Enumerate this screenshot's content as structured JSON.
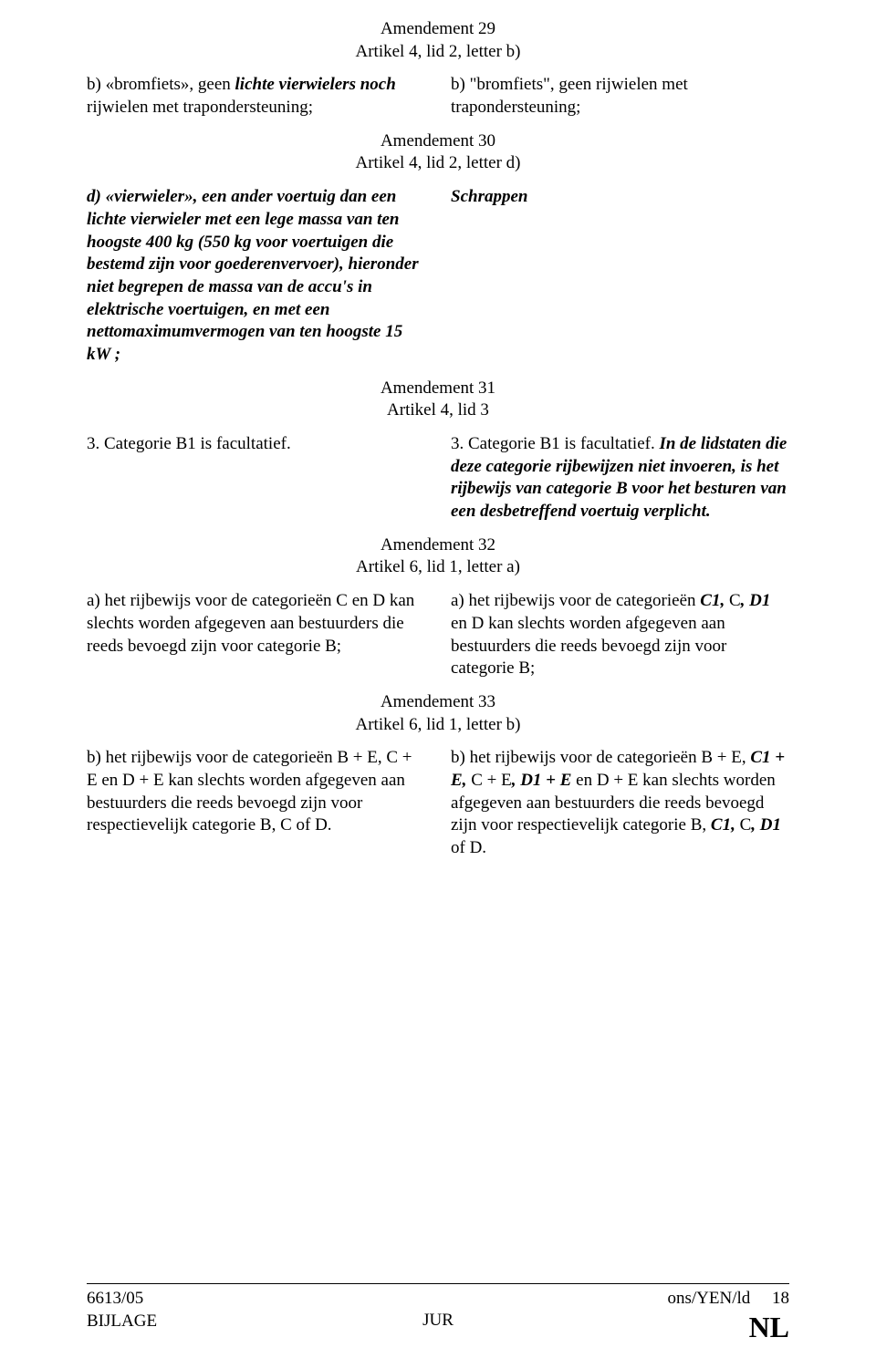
{
  "amend29": {
    "title": "Amendement 29",
    "subtitle": "Artikel 4, lid 2, letter b)",
    "left_html": "b) «bromfiets», geen <b><i>lichte vierwielers noch</i></b> rijwielen met trapondersteuning;",
    "right_html": "b) \"bromfiets\", geen rijwielen met trapondersteuning;"
  },
  "amend30": {
    "title": "Amendement 30",
    "subtitle": "Artikel 4, lid 2, letter d)",
    "left_html": "<b><i>d) «vierwieler», een ander voertuig dan een lichte vierwieler met een lege massa van ten hoogste 400 kg (550 kg voor voertuigen die bestemd zijn voor goederenvervoer), hieronder niet begrepen de massa van de accu's in elektrische voertuigen, en met een nettomaximumvermogen van ten hoogste 15 kW ;</i></b>",
    "right_html": "<b><i>Schrappen</i></b>"
  },
  "amend31": {
    "title": "Amendement 31",
    "subtitle": "Artikel 4, lid 3",
    "left_html": "3. Categorie B1 is facultatief.",
    "right_html": "3. Categorie B1 is facultatief. <b><i>In de lidstaten die deze categorie rijbewijzen niet invoeren, is het rijbewijs van categorie B voor het besturen van een desbetreffend voertuig verplicht.</i></b>"
  },
  "amend32": {
    "title": "Amendement 32",
    "subtitle": "Artikel 6, lid 1, letter a)",
    "left_html": "a) het rijbewijs voor de categorieën C en D kan slechts worden afgegeven aan bestuurders die reeds bevoegd zijn voor categorie B;",
    "right_html": "a) het rijbewijs voor de categorieën <b><i>C1,</i></b> C<b><i>, D1</i></b> en D kan slechts worden afgegeven aan bestuurders die reeds bevoegd zijn voor categorie B;"
  },
  "amend33": {
    "title": "Amendement 33",
    "subtitle": "Artikel 6, lid 1, letter b)",
    "left_html": "b) het rijbewijs voor de categorieën B + E, C + E en D + E kan slechts worden afgegeven aan bestuurders die reeds bevoegd zijn voor respectievelijk categorie B, C of D.",
    "right_html": "b) het rijbewijs voor de categorieën B + E, <b><i>C1 + E,</i></b> C + E<b><i>, D1 + E</i></b> en D + E kan slechts worden afgegeven aan bestuurders die reeds bevoegd zijn voor respectievelijk categorie B, <b><i>C1,</i></b> C<b><i>, D1</i></b> of D."
  },
  "footer": {
    "doc_ref": "6613/05",
    "bijlage": "BIJLAGE",
    "center": "JUR",
    "right_ref": "ons/YEN/ld",
    "page_num": "18",
    "lang": "NL"
  }
}
